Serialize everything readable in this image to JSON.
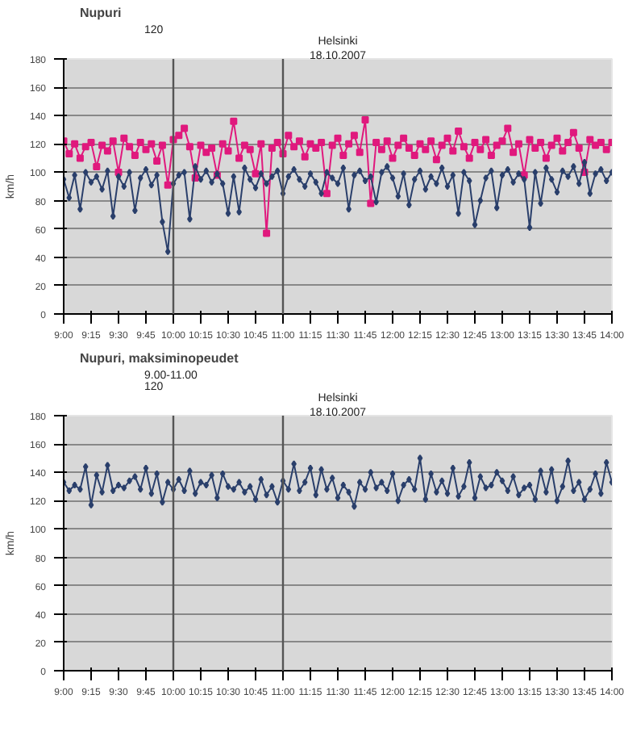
{
  "chart_data": [
    {
      "type": "line",
      "title": "Nupuri",
      "ylabel": "km/h",
      "annotations": [
        "18.10.2007",
        "Helsinki",
        "120"
      ],
      "xlim": [
        9,
        14
      ],
      "ylim": [
        0,
        180
      ],
      "yticks": [
        0,
        20,
        40,
        60,
        80,
        100,
        120,
        140,
        160,
        180
      ],
      "xticks": [
        {
          "value": 9,
          "label": "9:00"
        },
        {
          "value": 9.25,
          "label": "9:15"
        },
        {
          "value": 9.5,
          "label": "9:30"
        },
        {
          "value": 9.75,
          "label": "9:45"
        },
        {
          "value": 10,
          "label": "10:00"
        },
        {
          "value": 10.25,
          "label": "10:15"
        },
        {
          "value": 10.5,
          "label": "10:30"
        },
        {
          "value": 10.75,
          "label": "10:45"
        },
        {
          "value": 11,
          "label": "11:00"
        },
        {
          "value": 11.25,
          "label": "11:15"
        },
        {
          "value": 11.5,
          "label": "11:30"
        },
        {
          "value": 11.75,
          "label": "11:45"
        },
        {
          "value": 12,
          "label": "12:00"
        },
        {
          "value": 12.25,
          "label": "12:15"
        },
        {
          "value": 12.5,
          "label": "12:30"
        },
        {
          "value": 12.75,
          "label": "12:45"
        },
        {
          "value": 13,
          "label": "13:00"
        },
        {
          "value": 13.25,
          "label": "13:15"
        },
        {
          "value": 13.5,
          "label": "13:30"
        },
        {
          "value": 13.75,
          "label": "13:45"
        },
        {
          "value": 14,
          "label": "14:00"
        }
      ],
      "grid": "y",
      "ref_lines": [
        {
          "axis": "x",
          "value": 10,
          "color": "#555555"
        },
        {
          "axis": "x",
          "value": 11,
          "color": "#555555"
        }
      ],
      "x": [
        9.0,
        9.05,
        9.1,
        9.15,
        9.2,
        9.25,
        9.3,
        9.35,
        9.4,
        9.45,
        9.5,
        9.55,
        9.6,
        9.65,
        9.7,
        9.75,
        9.8,
        9.85,
        9.9,
        9.95,
        10.0,
        10.05,
        10.1,
        10.15,
        10.2,
        10.25,
        10.3,
        10.35,
        10.4,
        10.45,
        10.5,
        10.55,
        10.6,
        10.65,
        10.7,
        10.75,
        10.8,
        10.85,
        10.9,
        10.95,
        11.0,
        11.05,
        11.1,
        11.15,
        11.2,
        11.25,
        11.3,
        11.35,
        11.4,
        11.45,
        11.5,
        11.55,
        11.6,
        11.65,
        11.7,
        11.75,
        11.8,
        11.85,
        11.9,
        11.95,
        12.0,
        12.05,
        12.1,
        12.15,
        12.2,
        12.25,
        12.3,
        12.35,
        12.4,
        12.45,
        12.5,
        12.55,
        12.6,
        12.65,
        12.7,
        12.75,
        12.8,
        12.85,
        12.9,
        12.95,
        13.0,
        13.05,
        13.1,
        13.15,
        13.2,
        13.25,
        13.3,
        13.35,
        13.4,
        13.45,
        13.5,
        13.55,
        13.6,
        13.65,
        13.7,
        13.75,
        13.8,
        13.85,
        13.9,
        13.95,
        14.0
      ],
      "series": [
        {
          "color": "#e0197d",
          "marker": "square",
          "values": [
            122,
            113,
            120,
            110,
            118,
            121,
            104,
            119,
            115,
            122,
            100,
            124,
            118,
            112,
            121,
            116,
            120,
            108,
            119,
            91,
            123,
            126,
            131,
            118,
            96,
            119,
            114,
            117,
            98,
            120,
            115,
            136,
            110,
            119,
            116,
            99,
            120,
            57,
            117,
            121,
            113,
            126,
            118,
            122,
            111,
            120,
            117,
            121,
            85,
            119,
            124,
            112,
            120,
            126,
            114,
            137,
            78,
            121,
            116,
            122,
            110,
            119,
            124,
            117,
            112,
            120,
            116,
            122,
            109,
            119,
            124,
            115,
            129,
            118,
            110,
            121,
            116,
            123,
            112,
            119,
            122,
            131,
            114,
            120,
            98,
            123,
            117,
            121,
            110,
            119,
            124,
            115,
            121,
            128,
            117,
            100,
            123,
            119,
            121,
            116,
            121
          ]
        },
        {
          "color": "#2a3f6b",
          "marker": "diamond",
          "values": [
            95,
            82,
            98,
            74,
            100,
            93,
            97,
            88,
            101,
            69,
            97,
            90,
            100,
            73,
            96,
            102,
            91,
            98,
            65,
            44,
            92,
            98,
            100,
            67,
            104,
            95,
            101,
            93,
            99,
            92,
            71,
            97,
            72,
            103,
            95,
            89,
            99,
            92,
            97,
            101,
            85,
            97,
            102,
            95,
            90,
            99,
            93,
            85,
            100,
            96,
            92,
            103,
            74,
            98,
            101,
            94,
            97,
            79,
            100,
            104,
            96,
            83,
            99,
            77,
            95,
            101,
            88,
            97,
            92,
            103,
            90,
            98,
            71,
            100,
            94,
            63,
            80,
            96,
            101,
            75,
            98,
            102,
            93,
            99,
            95,
            61,
            100,
            78,
            103,
            95,
            86,
            101,
            97,
            104,
            92,
            107,
            85,
            99,
            102,
            94,
            100
          ]
        }
      ]
    },
    {
      "type": "line",
      "title": "Nupuri, maksiminopeudet",
      "ylabel": "km/h",
      "annotations": [
        "18.10.2007",
        "Helsinki",
        "120",
        "9.00-11.00"
      ],
      "xlim": [
        9,
        14
      ],
      "ylim": [
        0,
        180
      ],
      "yticks": [
        0,
        20,
        40,
        60,
        80,
        100,
        120,
        140,
        160,
        180
      ],
      "xticks": [
        {
          "value": 9,
          "label": "9:00"
        },
        {
          "value": 9.25,
          "label": "9:15"
        },
        {
          "value": 9.5,
          "label": "9:30"
        },
        {
          "value": 9.75,
          "label": "9:45"
        },
        {
          "value": 10,
          "label": "10:00"
        },
        {
          "value": 10.25,
          "label": "10:15"
        },
        {
          "value": 10.5,
          "label": "10:30"
        },
        {
          "value": 10.75,
          "label": "10:45"
        },
        {
          "value": 11,
          "label": "11:00"
        },
        {
          "value": 11.25,
          "label": "11:15"
        },
        {
          "value": 11.5,
          "label": "11:30"
        },
        {
          "value": 11.75,
          "label": "11:45"
        },
        {
          "value": 12,
          "label": "12:00"
        },
        {
          "value": 12.25,
          "label": "12:15"
        },
        {
          "value": 12.5,
          "label": "12:30"
        },
        {
          "value": 12.75,
          "label": "12:45"
        },
        {
          "value": 13,
          "label": "13:00"
        },
        {
          "value": 13.25,
          "label": "13:15"
        },
        {
          "value": 13.5,
          "label": "13:30"
        },
        {
          "value": 13.75,
          "label": "13:45"
        },
        {
          "value": 14,
          "label": "14:00"
        }
      ],
      "grid": "y",
      "ref_lines": [
        {
          "axis": "x",
          "value": 10,
          "color": "#555555"
        },
        {
          "axis": "x",
          "value": 11,
          "color": "#555555"
        }
      ],
      "x": [
        9.0,
        9.05,
        9.1,
        9.15,
        9.2,
        9.25,
        9.3,
        9.35,
        9.4,
        9.45,
        9.5,
        9.55,
        9.6,
        9.65,
        9.7,
        9.75,
        9.8,
        9.85,
        9.9,
        9.95,
        10.0,
        10.05,
        10.1,
        10.15,
        10.2,
        10.25,
        10.3,
        10.35,
        10.4,
        10.45,
        10.5,
        10.55,
        10.6,
        10.65,
        10.7,
        10.75,
        10.8,
        10.85,
        10.9,
        10.95,
        11.0,
        11.05,
        11.1,
        11.15,
        11.2,
        11.25,
        11.3,
        11.35,
        11.4,
        11.45,
        11.5,
        11.55,
        11.6,
        11.65,
        11.7,
        11.75,
        11.8,
        11.85,
        11.9,
        11.95,
        12.0,
        12.05,
        12.1,
        12.15,
        12.2,
        12.25,
        12.3,
        12.35,
        12.4,
        12.45,
        12.5,
        12.55,
        12.6,
        12.65,
        12.7,
        12.75,
        12.8,
        12.85,
        12.9,
        12.95,
        13.0,
        13.05,
        13.1,
        13.15,
        13.2,
        13.25,
        13.3,
        13.35,
        13.4,
        13.45,
        13.5,
        13.55,
        13.6,
        13.65,
        13.7,
        13.75,
        13.8,
        13.85,
        13.9,
        13.95,
        14.0
      ],
      "series": [
        {
          "color": "#2a3f6b",
          "marker": "diamond",
          "values": [
            133,
            127,
            131,
            128,
            144,
            117,
            138,
            126,
            145,
            127,
            131,
            129,
            134,
            137,
            128,
            143,
            125,
            139,
            119,
            133,
            128,
            135,
            127,
            141,
            125,
            133,
            131,
            138,
            122,
            139,
            130,
            128,
            133,
            126,
            130,
            121,
            135,
            124,
            130,
            119,
            134,
            128,
            146,
            127,
            133,
            143,
            124,
            142,
            128,
            136,
            122,
            131,
            126,
            116,
            133,
            128,
            140,
            129,
            133,
            127,
            139,
            120,
            131,
            135,
            128,
            150,
            121,
            139,
            126,
            134,
            125,
            143,
            123,
            130,
            147,
            122,
            137,
            129,
            131,
            140,
            134,
            127,
            137,
            124,
            129,
            131,
            121,
            141,
            126,
            142,
            120,
            130,
            148,
            127,
            133,
            121,
            128,
            139,
            125,
            147,
            133
          ]
        }
      ]
    }
  ]
}
